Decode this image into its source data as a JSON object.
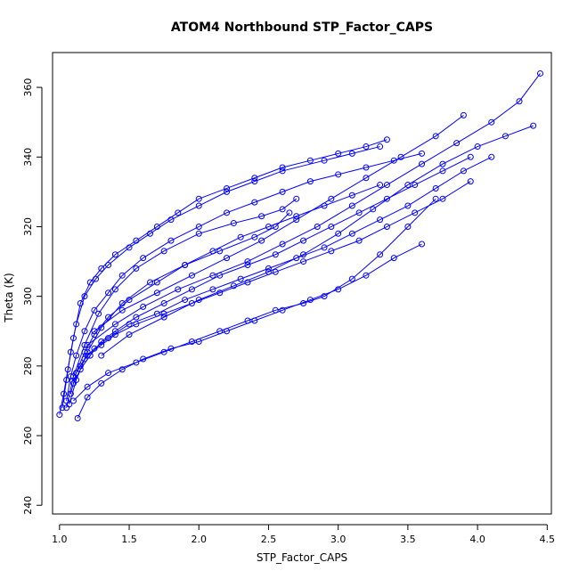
{
  "chart_data": {
    "type": "line",
    "title": "ATOM4 Northbound STP_Factor_CAPS",
    "xlabel": "STP_Factor_CAPS",
    "ylabel": "Theta (K)",
    "xlim": [
      0.95,
      4.53
    ],
    "ylim": [
      237.5,
      370
    ],
    "xticks": [
      1.0,
      1.5,
      2.0,
      2.5,
      3.0,
      3.5,
      4.0,
      4.5
    ],
    "xtick_labels": [
      "1.0",
      "1.5",
      "2.0",
      "2.5",
      "3.0",
      "3.5",
      "4.0",
      "4.5"
    ],
    "yticks": [
      240,
      260,
      280,
      300,
      320,
      340,
      360
    ],
    "ytick_labels": [
      "240",
      "260",
      "280",
      "300",
      "320",
      "340",
      "360"
    ],
    "grid": false,
    "legend": "none",
    "marker": "open-circle",
    "color": "#0000ff",
    "series": [
      {
        "x": [
          1.0,
          1.03,
          1.06,
          1.1,
          1.15,
          1.22,
          1.3,
          1.4,
          1.55,
          1.7,
          1.85,
          2.0,
          2.2,
          2.4,
          2.6,
          2.8,
          3.0,
          3.2,
          3.35
        ],
        "y": [
          266,
          272,
          279,
          288,
          298,
          304,
          308,
          312,
          316,
          320,
          324,
          328,
          331,
          334,
          337,
          339,
          341,
          343,
          345
        ]
      },
      {
        "x": [
          1.02,
          1.05,
          1.08,
          1.12,
          1.18,
          1.26,
          1.35,
          1.5,
          1.65,
          1.8,
          2.0,
          2.2,
          2.4,
          2.6,
          2.9,
          3.1,
          3.3
        ],
        "y": [
          268,
          276,
          284,
          292,
          300,
          305,
          309,
          314,
          318,
          322,
          326,
          330,
          333,
          336,
          339,
          341,
          343
        ]
      },
      {
        "x": [
          1.05,
          1.08,
          1.12,
          1.18,
          1.25,
          1.35,
          1.45,
          1.6,
          1.8,
          2.0,
          2.2,
          2.4,
          2.6,
          2.8,
          3.0,
          3.2,
          3.4,
          3.6
        ],
        "y": [
          270,
          277,
          283,
          290,
          296,
          301,
          306,
          311,
          316,
          320,
          324,
          327,
          330,
          333,
          335,
          337,
          339,
          341
        ]
      },
      {
        "x": [
          1.08,
          1.12,
          1.18,
          1.25,
          1.35,
          1.5,
          1.7,
          1.9,
          2.1,
          2.3,
          2.5,
          2.7,
          2.9,
          3.1,
          3.3
        ],
        "y": [
          272,
          278,
          284,
          289,
          294,
          299,
          304,
          309,
          313,
          317,
          320,
          323,
          326,
          329,
          332
        ]
      },
      {
        "x": [
          1.1,
          1.15,
          1.22,
          1.3,
          1.4,
          1.55,
          1.75,
          1.95,
          2.15,
          2.35,
          2.55,
          2.75,
          2.95,
          3.15,
          3.35,
          3.55,
          3.75,
          3.95
        ],
        "y": [
          275,
          279,
          283,
          287,
          290,
          294,
          298,
          302,
          306,
          309,
          312,
          316,
          320,
          324,
          328,
          332,
          336,
          340
        ]
      },
      {
        "x": [
          1.12,
          1.18,
          1.25,
          1.35,
          1.5,
          1.7,
          1.9,
          2.1,
          2.3,
          2.5,
          2.7,
          2.9,
          3.1,
          3.3,
          3.5,
          3.7,
          3.9,
          4.1
        ],
        "y": [
          278,
          282,
          285,
          288,
          292,
          295,
          299,
          302,
          305,
          308,
          311,
          314,
          318,
          322,
          326,
          331,
          336,
          340
        ]
      },
      {
        "x": [
          1.15,
          1.2,
          1.3,
          1.4,
          1.55,
          1.75,
          1.95,
          2.15,
          2.35,
          2.55,
          2.75,
          2.95,
          3.15,
          3.35,
          3.55,
          3.75,
          3.95
        ],
        "y": [
          280,
          283,
          286,
          289,
          292,
          295,
          298,
          301,
          304,
          307,
          310,
          313,
          316,
          320,
          324,
          328,
          333
        ]
      },
      {
        "x": [
          1.13,
          1.2,
          1.3,
          1.45,
          1.6,
          1.8,
          2.0,
          2.2,
          2.4,
          2.6,
          2.8,
          3.0,
          3.2,
          3.4,
          3.6
        ],
        "y": [
          265,
          271,
          275,
          279,
          282,
          285,
          287,
          290,
          293,
          296,
          299,
          302,
          306,
          311,
          315
        ]
      },
      {
        "x": [
          1.1,
          1.2,
          1.35,
          1.55,
          1.75,
          1.95,
          2.15,
          2.35,
          2.55,
          2.75,
          2.9,
          3.1,
          3.3,
          3.5,
          3.7
        ],
        "y": [
          270,
          274,
          278,
          281,
          284,
          287,
          290,
          293,
          296,
          298,
          300,
          305,
          312,
          320,
          328
        ]
      },
      {
        "x": [
          1.3,
          1.5,
          1.75,
          2.0,
          2.25,
          2.5,
          2.75,
          3.0,
          3.25,
          3.5,
          3.75,
          4.0,
          4.2,
          4.4
        ],
        "y": [
          283,
          289,
          294,
          299,
          303,
          307,
          312,
          318,
          325,
          332,
          338,
          343,
          346,
          349
        ]
      },
      {
        "x": [
          1.2,
          1.4,
          1.6,
          1.85,
          2.1,
          2.35,
          2.6,
          2.85,
          3.1,
          3.35,
          3.6,
          3.85,
          4.1,
          4.3,
          4.45
        ],
        "y": [
          286,
          292,
          297,
          302,
          306,
          310,
          315,
          320,
          326,
          332,
          338,
          344,
          350,
          356,
          364
        ]
      },
      {
        "x": [
          1.05,
          1.1,
          1.18,
          1.28,
          1.4,
          1.55,
          1.75,
          2.0,
          2.25,
          2.45,
          2.6,
          2.7
        ],
        "y": [
          268,
          277,
          286,
          295,
          302,
          308,
          313,
          318,
          321,
          323,
          325,
          328
        ]
      },
      {
        "x": [
          1.07,
          1.12,
          1.2,
          1.3,
          1.45,
          1.65,
          1.9,
          2.15,
          2.4,
          2.55,
          2.65
        ],
        "y": [
          269,
          276,
          284,
          291,
          298,
          304,
          309,
          313,
          317,
          320,
          324
        ]
      },
      {
        "x": [
          1.25,
          1.45,
          1.7,
          1.95,
          2.2,
          2.45,
          2.7,
          2.95,
          3.2,
          3.45,
          3.7,
          3.9
        ],
        "y": [
          290,
          296,
          301,
          306,
          311,
          316,
          322,
          328,
          334,
          340,
          346,
          352
        ]
      }
    ]
  }
}
